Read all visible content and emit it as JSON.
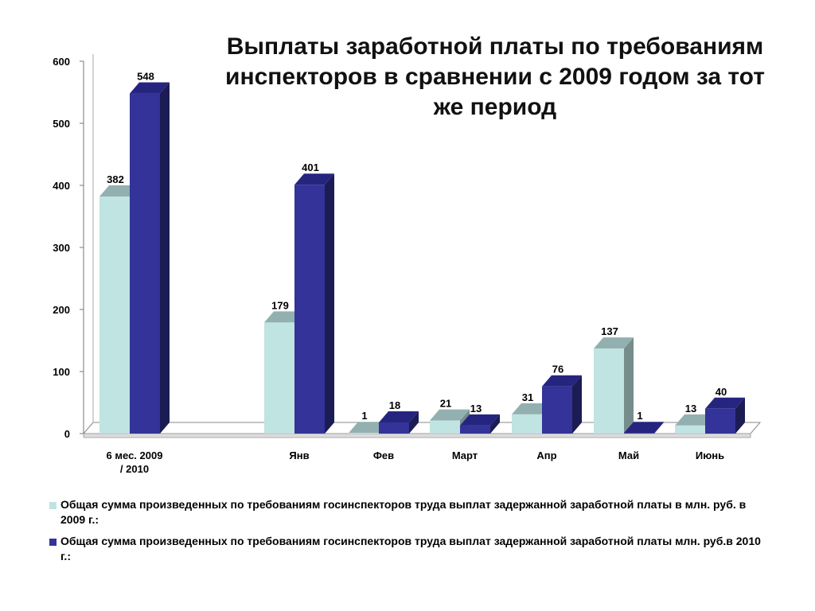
{
  "chart_data": {
    "type": "bar",
    "title": "Выплаты заработной платы по требованиям инспекторов в сравнении с 2009 годом за тот же период",
    "categories": [
      [
        "6 мес. 2009",
        "/ 2010"
      ],
      [
        "Янв"
      ],
      [
        "Фев"
      ],
      [
        "Март"
      ],
      [
        "Апр"
      ],
      [
        "Май"
      ],
      [
        "Июнь"
      ]
    ],
    "series": [
      {
        "name": "Общая сумма произведенных по требованиям  госинспекторов труда выплат задержанной заработной платы в млн. руб. в 2009 г.:",
        "color": "#bfe4e2",
        "values": [
          382,
          179,
          1,
          21,
          31,
          137,
          13
        ]
      },
      {
        "name": "Общая сумма произведенных по требованиям  госинспекторов труда выплат задержанной заработной платы млн. руб.в 2010 г.:",
        "color": "#333399",
        "values": [
          548,
          401,
          18,
          13,
          76,
          1,
          40
        ]
      }
    ],
    "yticks": [
      0,
      100,
      200,
      300,
      400,
      500,
      600
    ],
    "ylim": [
      0,
      600
    ],
    "grid": false,
    "legend_position": "bottom"
  }
}
